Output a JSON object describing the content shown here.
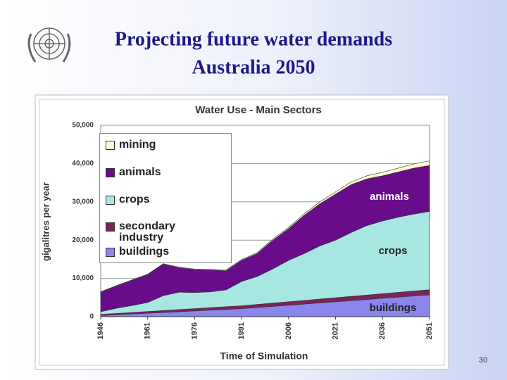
{
  "slide_title_line1": "Projecting future water demands",
  "slide_title_line2": "Australia 2050",
  "page_number": "30",
  "chart_data": {
    "type": "stacked_area",
    "title": "Water Use - Main Sectors",
    "y_label": "gigalitres per year",
    "x_label": "Time of Simulation",
    "x": [
      1946,
      1951,
      1956,
      1961,
      1966,
      1971,
      1976,
      1981,
      1986,
      1991,
      1996,
      2001,
      2006,
      2011,
      2016,
      2021,
      2026,
      2031,
      2036,
      2041,
      2046,
      2051
    ],
    "xlim": [
      1946,
      2051
    ],
    "xticks": [
      1946,
      1961,
      1976,
      1991,
      2006,
      2021,
      2036,
      2051
    ],
    "ylim": [
      0,
      50000
    ],
    "yticks": [
      0,
      {
        "value": 10000,
        "label": "10,000"
      },
      {
        "value": 20000,
        "label": "20,000"
      },
      {
        "value": 30000,
        "label": "30,000"
      },
      {
        "value": 40000,
        "label": "40,000"
      },
      {
        "value": 50000,
        "label": "50,000"
      }
    ],
    "grid": true,
    "legend": "upper left",
    "series": [
      {
        "name": "buildings",
        "color": "#8a86ec",
        "values": [
          300,
          500,
          700,
          900,
          1100,
          1300,
          1500,
          1700,
          1900,
          2100,
          2400,
          2700,
          3000,
          3300,
          3600,
          3900,
          4200,
          4500,
          4800,
          5100,
          5400,
          5700
        ]
      },
      {
        "name": "secondary industry",
        "color": "#7a2458",
        "values": [
          300,
          350,
          400,
          450,
          500,
          550,
          600,
          650,
          700,
          750,
          800,
          850,
          900,
          950,
          1000,
          1050,
          1100,
          1150,
          1200,
          1250,
          1300,
          1350
        ]
      },
      {
        "name": "crops",
        "color": "#a8e6e2",
        "values": [
          700,
          1350,
          1800,
          2350,
          3900,
          4550,
          4200,
          4150,
          4400,
          6350,
          7300,
          8950,
          10800,
          12250,
          13900,
          15050,
          16700,
          18150,
          19000,
          19650,
          20100,
          20450
        ]
      },
      {
        "name": "animals",
        "color": "#680c8c",
        "values": [
          5100,
          5800,
          6600,
          7300,
          8200,
          6400,
          6000,
          5700,
          5000,
          5500,
          6000,
          7500,
          8300,
          10000,
          11000,
          12000,
          12500,
          12200,
          11800,
          11800,
          12000,
          12000
        ]
      },
      {
        "name": "mining",
        "color": "#fffbcc",
        "values": [
          100,
          100,
          100,
          100,
          150,
          150,
          150,
          150,
          200,
          200,
          250,
          300,
          350,
          400,
          500,
          600,
          700,
          800,
          900,
          1000,
          1100,
          1200
        ]
      }
    ],
    "annotations": [
      "animals",
      "crops",
      "buildings"
    ]
  }
}
